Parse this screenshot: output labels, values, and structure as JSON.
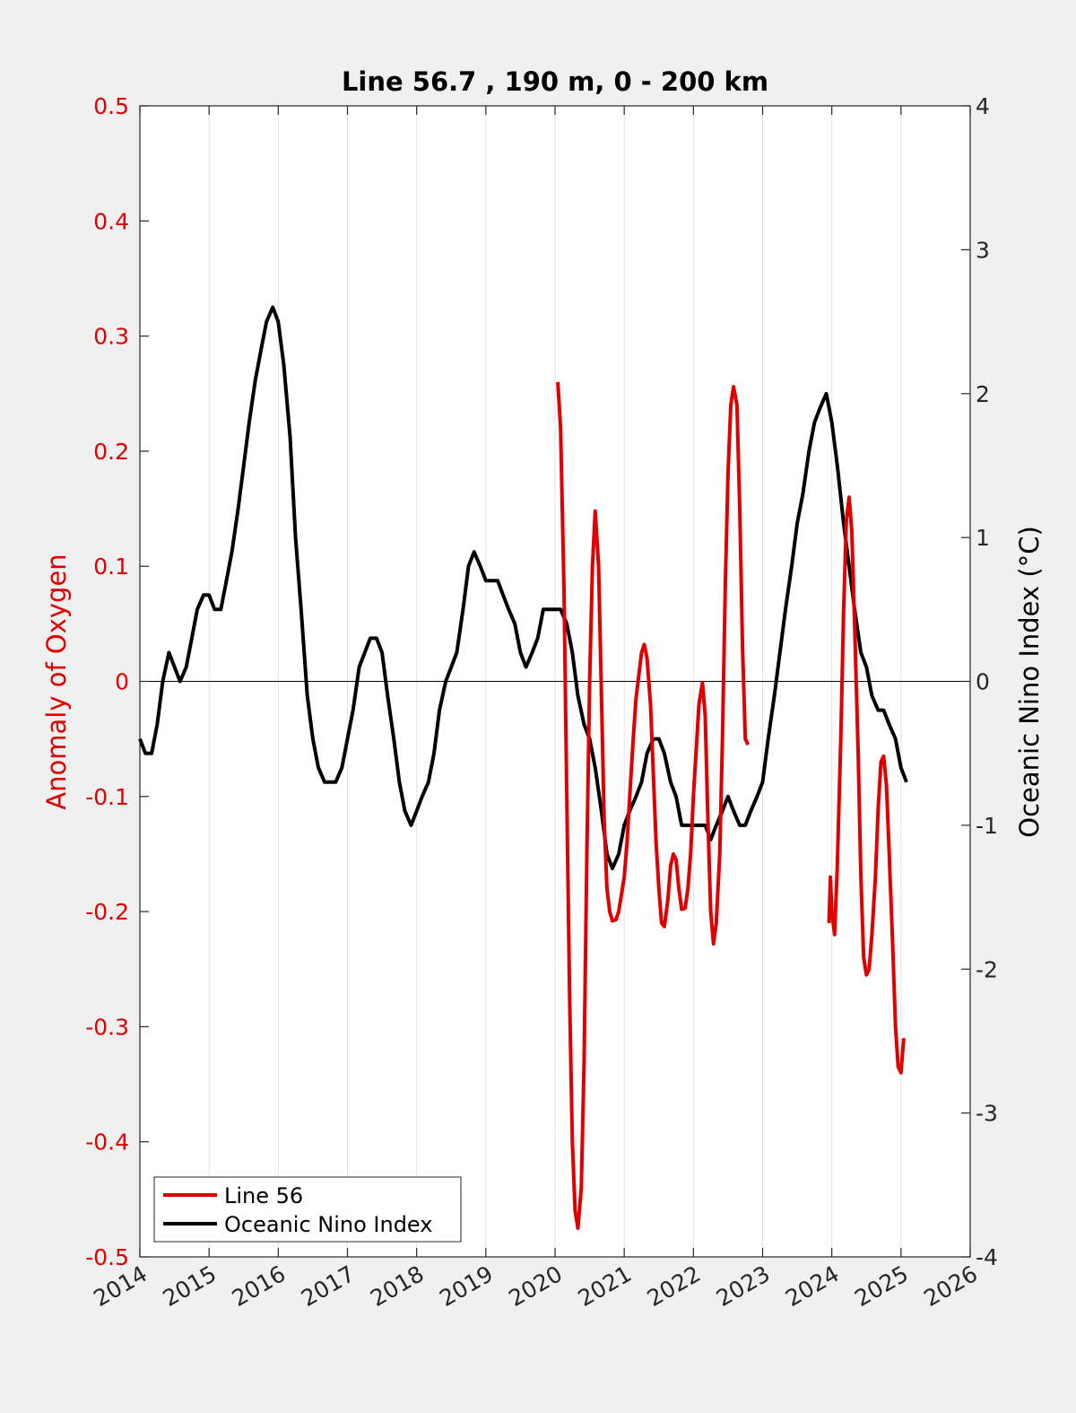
{
  "chart_data": {
    "type": "line",
    "title": "Line 56.7 , 190 m, 0 - 200 km",
    "xlabel": "",
    "ylabel_left": "Anomaly of Oxygen",
    "ylabel_right": "Oceanic Nino Index (°C)",
    "xlim": [
      2014,
      2026
    ],
    "ylim_left": [
      -0.5,
      0.5
    ],
    "ylim_right": [
      -4,
      4
    ],
    "x_ticks": [
      2014,
      2015,
      2016,
      2017,
      2018,
      2019,
      2020,
      2021,
      2022,
      2023,
      2024,
      2025,
      2026
    ],
    "x_tick_labels": [
      "2014",
      "2015",
      "2016",
      "2017",
      "2018",
      "2019",
      "2020",
      "2021",
      "2022",
      "2023",
      "2024",
      "2025",
      "2026"
    ],
    "y_left_ticks": [
      -0.5,
      -0.4,
      -0.3,
      -0.2,
      -0.1,
      0,
      0.1,
      0.2,
      0.3,
      0.4,
      0.5
    ],
    "y_left_tick_labels": [
      "-0.5",
      "-0.4",
      "-0.3",
      "-0.2",
      "-0.1",
      "0",
      "0.1",
      "0.2",
      "0.3",
      "0.4",
      "0.5"
    ],
    "y_right_ticks": [
      -4,
      -3,
      -2,
      -1,
      0,
      1,
      2,
      3,
      4
    ],
    "y_right_tick_labels": [
      "-4",
      "-3",
      "-2",
      "-1",
      "0",
      "1",
      "2",
      "3",
      "4"
    ],
    "grid": "vertical",
    "legend_position": "bottom-left",
    "series": [
      {
        "name": "Line 56",
        "axis": "left",
        "color": "#e00000",
        "segments": [
          [
            [
              2020.04,
              0.26
            ],
            [
              2020.08,
              0.22
            ],
            [
              2020.13,
              0.08
            ],
            [
              2020.17,
              -0.1
            ],
            [
              2020.21,
              -0.27
            ],
            [
              2020.25,
              -0.4
            ],
            [
              2020.29,
              -0.46
            ],
            [
              2020.33,
              -0.475
            ],
            [
              2020.38,
              -0.44
            ],
            [
              2020.42,
              -0.33
            ],
            [
              2020.46,
              -0.15
            ],
            [
              2020.5,
              0.0
            ],
            [
              2020.54,
              0.1
            ],
            [
              2020.58,
              0.148
            ],
            [
              2020.63,
              0.1
            ],
            [
              2020.67,
              -0.01
            ],
            [
              2020.71,
              -0.12
            ],
            [
              2020.75,
              -0.18
            ],
            [
              2020.79,
              -0.2
            ],
            [
              2020.83,
              -0.208
            ],
            [
              2020.88,
              -0.207
            ],
            [
              2020.92,
              -0.2
            ],
            [
              2020.96,
              -0.185
            ],
            [
              2021.0,
              -0.17
            ],
            [
              2021.04,
              -0.14
            ],
            [
              2021.08,
              -0.1
            ],
            [
              2021.13,
              -0.05
            ],
            [
              2021.17,
              -0.015
            ],
            [
              2021.21,
              0.005
            ],
            [
              2021.25,
              0.025
            ],
            [
              2021.29,
              0.032
            ],
            [
              2021.33,
              0.02
            ],
            [
              2021.38,
              -0.02
            ],
            [
              2021.42,
              -0.08
            ],
            [
              2021.46,
              -0.14
            ],
            [
              2021.5,
              -0.18
            ],
            [
              2021.54,
              -0.21
            ],
            [
              2021.58,
              -0.213
            ],
            [
              2021.63,
              -0.19
            ],
            [
              2021.67,
              -0.16
            ],
            [
              2021.71,
              -0.15
            ],
            [
              2021.75,
              -0.155
            ],
            [
              2021.79,
              -0.18
            ],
            [
              2021.83,
              -0.198
            ],
            [
              2021.88,
              -0.197
            ],
            [
              2021.92,
              -0.18
            ],
            [
              2021.96,
              -0.15
            ],
            [
              2022.0,
              -0.1
            ],
            [
              2022.04,
              -0.06
            ],
            [
              2022.08,
              -0.02
            ],
            [
              2022.13,
              -0.001
            ],
            [
              2022.17,
              -0.03
            ],
            [
              2022.21,
              -0.12
            ],
            [
              2022.25,
              -0.2
            ],
            [
              2022.29,
              -0.228
            ],
            [
              2022.33,
              -0.21
            ],
            [
              2022.38,
              -0.15
            ],
            [
              2022.42,
              -0.05
            ],
            [
              2022.46,
              0.08
            ],
            [
              2022.5,
              0.18
            ],
            [
              2022.54,
              0.24
            ],
            [
              2022.58,
              0.256
            ],
            [
              2022.63,
              0.24
            ],
            [
              2022.67,
              0.15
            ],
            [
              2022.71,
              0.03
            ],
            [
              2022.75,
              -0.05
            ],
            [
              2022.79,
              -0.055
            ]
          ],
          [
            [
              2023.96,
              -0.21
            ],
            [
              2023.98,
              -0.17
            ],
            [
              2024.0,
              -0.2
            ],
            [
              2024.04,
              -0.22
            ],
            [
              2024.08,
              -0.16
            ],
            [
              2024.13,
              -0.05
            ],
            [
              2024.17,
              0.06
            ],
            [
              2024.21,
              0.14
            ],
            [
              2024.25,
              0.16
            ],
            [
              2024.29,
              0.13
            ],
            [
              2024.33,
              0.05
            ],
            [
              2024.38,
              -0.06
            ],
            [
              2024.42,
              -0.17
            ],
            [
              2024.46,
              -0.24
            ],
            [
              2024.5,
              -0.255
            ],
            [
              2024.54,
              -0.25
            ],
            [
              2024.58,
              -0.22
            ],
            [
              2024.63,
              -0.17
            ],
            [
              2024.67,
              -0.11
            ],
            [
              2024.71,
              -0.07
            ],
            [
              2024.75,
              -0.065
            ],
            [
              2024.79,
              -0.09
            ],
            [
              2024.83,
              -0.15
            ],
            [
              2024.88,
              -0.23
            ],
            [
              2024.92,
              -0.3
            ],
            [
              2024.96,
              -0.335
            ],
            [
              2025.0,
              -0.34
            ],
            [
              2025.04,
              -0.31
            ]
          ]
        ]
      },
      {
        "name": "Oceanic Nino Index",
        "axis": "right",
        "color": "#000000",
        "points": [
          [
            2014.0,
            -0.4
          ],
          [
            2014.08,
            -0.5
          ],
          [
            2014.17,
            -0.5
          ],
          [
            2014.25,
            -0.3
          ],
          [
            2014.33,
            0.0
          ],
          [
            2014.42,
            0.2
          ],
          [
            2014.5,
            0.1
          ],
          [
            2014.58,
            0.0
          ],
          [
            2014.67,
            0.1
          ],
          [
            2014.75,
            0.3
          ],
          [
            2014.83,
            0.5
          ],
          [
            2014.92,
            0.6
          ],
          [
            2015.0,
            0.6
          ],
          [
            2015.08,
            0.5
          ],
          [
            2015.17,
            0.5
          ],
          [
            2015.25,
            0.7
          ],
          [
            2015.33,
            0.9
          ],
          [
            2015.42,
            1.2
          ],
          [
            2015.5,
            1.5
          ],
          [
            2015.58,
            1.8
          ],
          [
            2015.67,
            2.1
          ],
          [
            2015.75,
            2.3
          ],
          [
            2015.83,
            2.5
          ],
          [
            2015.92,
            2.6
          ],
          [
            2016.0,
            2.5
          ],
          [
            2016.08,
            2.2
          ],
          [
            2016.17,
            1.7
          ],
          [
            2016.25,
            1.0
          ],
          [
            2016.33,
            0.5
          ],
          [
            2016.42,
            -0.1
          ],
          [
            2016.5,
            -0.4
          ],
          [
            2016.58,
            -0.6
          ],
          [
            2016.67,
            -0.7
          ],
          [
            2016.75,
            -0.7
          ],
          [
            2016.83,
            -0.7
          ],
          [
            2016.92,
            -0.6
          ],
          [
            2017.0,
            -0.4
          ],
          [
            2017.08,
            -0.2
          ],
          [
            2017.17,
            0.1
          ],
          [
            2017.25,
            0.2
          ],
          [
            2017.33,
            0.3
          ],
          [
            2017.42,
            0.3
          ],
          [
            2017.5,
            0.2
          ],
          [
            2017.58,
            -0.1
          ],
          [
            2017.67,
            -0.4
          ],
          [
            2017.75,
            -0.7
          ],
          [
            2017.83,
            -0.9
          ],
          [
            2017.92,
            -1.0
          ],
          [
            2018.0,
            -0.9
          ],
          [
            2018.08,
            -0.8
          ],
          [
            2018.17,
            -0.7
          ],
          [
            2018.25,
            -0.5
          ],
          [
            2018.33,
            -0.2
          ],
          [
            2018.42,
            0.0
          ],
          [
            2018.5,
            0.1
          ],
          [
            2018.58,
            0.2
          ],
          [
            2018.67,
            0.5
          ],
          [
            2018.75,
            0.8
          ],
          [
            2018.83,
            0.9
          ],
          [
            2018.92,
            0.8
          ],
          [
            2019.0,
            0.7
          ],
          [
            2019.08,
            0.7
          ],
          [
            2019.17,
            0.7
          ],
          [
            2019.25,
            0.6
          ],
          [
            2019.33,
            0.5
          ],
          [
            2019.42,
            0.4
          ],
          [
            2019.5,
            0.2
          ],
          [
            2019.58,
            0.1
          ],
          [
            2019.67,
            0.2
          ],
          [
            2019.75,
            0.3
          ],
          [
            2019.83,
            0.5
          ],
          [
            2019.92,
            0.5
          ],
          [
            2020.0,
            0.5
          ],
          [
            2020.08,
            0.5
          ],
          [
            2020.17,
            0.4
          ],
          [
            2020.25,
            0.2
          ],
          [
            2020.33,
            -0.1
          ],
          [
            2020.42,
            -0.3
          ],
          [
            2020.5,
            -0.4
          ],
          [
            2020.58,
            -0.6
          ],
          [
            2020.67,
            -0.9
          ],
          [
            2020.75,
            -1.2
          ],
          [
            2020.83,
            -1.3
          ],
          [
            2020.92,
            -1.2
          ],
          [
            2021.0,
            -1.0
          ],
          [
            2021.08,
            -0.9
          ],
          [
            2021.17,
            -0.8
          ],
          [
            2021.25,
            -0.7
          ],
          [
            2021.33,
            -0.5
          ],
          [
            2021.42,
            -0.4
          ],
          [
            2021.5,
            -0.4
          ],
          [
            2021.58,
            -0.5
          ],
          [
            2021.67,
            -0.7
          ],
          [
            2021.75,
            -0.8
          ],
          [
            2021.83,
            -1.0
          ],
          [
            2021.92,
            -1.0
          ],
          [
            2022.0,
            -1.0
          ],
          [
            2022.08,
            -1.0
          ],
          [
            2022.17,
            -1.0
          ],
          [
            2022.25,
            -1.1
          ],
          [
            2022.33,
            -1.0
          ],
          [
            2022.42,
            -0.9
          ],
          [
            2022.5,
            -0.8
          ],
          [
            2022.58,
            -0.9
          ],
          [
            2022.67,
            -1.0
          ],
          [
            2022.75,
            -1.0
          ],
          [
            2022.83,
            -0.9
          ],
          [
            2022.92,
            -0.8
          ],
          [
            2023.0,
            -0.7
          ],
          [
            2023.08,
            -0.4
          ],
          [
            2023.17,
            -0.1
          ],
          [
            2023.25,
            0.2
          ],
          [
            2023.33,
            0.5
          ],
          [
            2023.42,
            0.8
          ],
          [
            2023.5,
            1.1
          ],
          [
            2023.58,
            1.3
          ],
          [
            2023.67,
            1.6
          ],
          [
            2023.75,
            1.8
          ],
          [
            2023.83,
            1.9
          ],
          [
            2023.92,
            2.0
          ],
          [
            2024.0,
            1.8
          ],
          [
            2024.08,
            1.5
          ],
          [
            2024.17,
            1.1
          ],
          [
            2024.25,
            0.8
          ],
          [
            2024.33,
            0.5
          ],
          [
            2024.42,
            0.2
          ],
          [
            2024.5,
            0.1
          ],
          [
            2024.58,
            -0.1
          ],
          [
            2024.67,
            -0.2
          ],
          [
            2024.75,
            -0.2
          ],
          [
            2024.83,
            -0.3
          ],
          [
            2024.92,
            -0.4
          ],
          [
            2025.0,
            -0.6
          ],
          [
            2025.08,
            -0.7
          ]
        ]
      }
    ]
  }
}
